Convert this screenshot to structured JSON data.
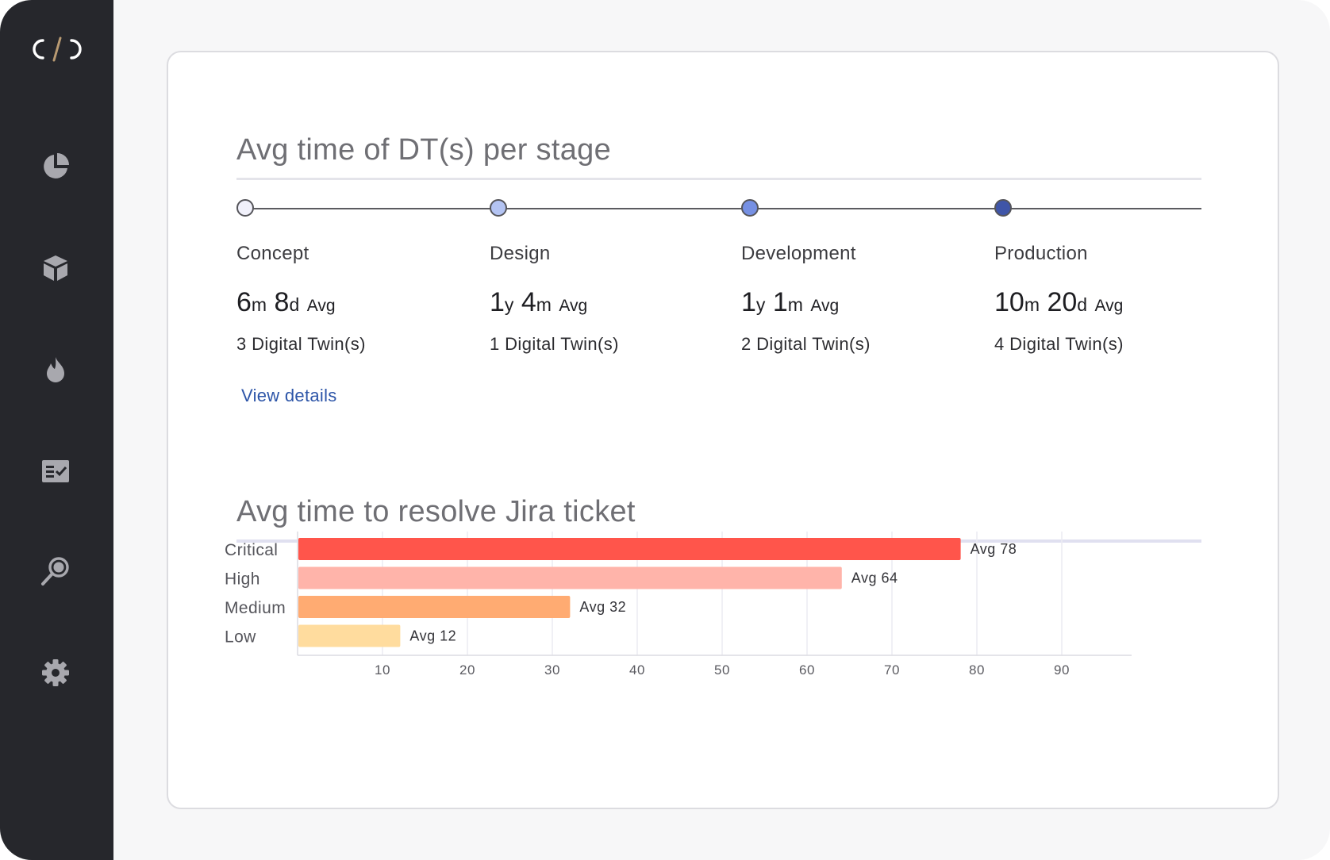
{
  "app": {
    "logo_text": "C/C",
    "nav": [
      {
        "icon": "pie-chart-icon"
      },
      {
        "icon": "cube-icon"
      },
      {
        "icon": "flame-icon"
      },
      {
        "icon": "checklist-icon"
      },
      {
        "icon": "magnifier-icon"
      },
      {
        "icon": "gear-icon"
      }
    ]
  },
  "stages_section": {
    "title": "Avg time of DT(s) per stage",
    "view_details_label": "View details",
    "stages": [
      {
        "name": "Concept",
        "v1": "6",
        "u1": "m",
        "v2": "8",
        "u2": "d",
        "avg": "Avg",
        "count": "3 Digital Twin(s)",
        "color": "#f1f1fb"
      },
      {
        "name": "Design",
        "v1": "1",
        "u1": "y",
        "v2": "4",
        "u2": "m",
        "avg": "Avg",
        "count": "1 Digital Twin(s)",
        "color": "#b4c4f3"
      },
      {
        "name": "Development",
        "v1": "1",
        "u1": "y",
        "v2": "1",
        "u2": "m",
        "avg": "Avg",
        "count": "2 Digital Twin(s)",
        "color": "#7690e3"
      },
      {
        "name": "Production",
        "v1": "10",
        "u1": "m",
        "v2": "20",
        "u2": "d",
        "avg": "Avg",
        "count": "4 Digital Twin(s)",
        "color": "#3f55a8"
      }
    ]
  },
  "jira_section": {
    "title": "Avg time to resolve Jira ticket"
  },
  "chart_data": {
    "type": "bar",
    "orientation": "horizontal",
    "title": "Avg time to resolve Jira ticket",
    "categories": [
      "Critical",
      "High",
      "Medium",
      "Low"
    ],
    "values": [
      78,
      64,
      32,
      12
    ],
    "data_labels": [
      "Avg 78",
      "Avg 64",
      "Avg 32",
      "Avg 12"
    ],
    "colors": [
      "#ff554b",
      "#ffb4aa",
      "#ffab72",
      "#ffdc9e"
    ],
    "x_ticks": [
      10,
      20,
      30,
      40,
      50,
      60,
      70,
      80,
      90
    ],
    "xlim": [
      0,
      100
    ],
    "grid": true
  }
}
